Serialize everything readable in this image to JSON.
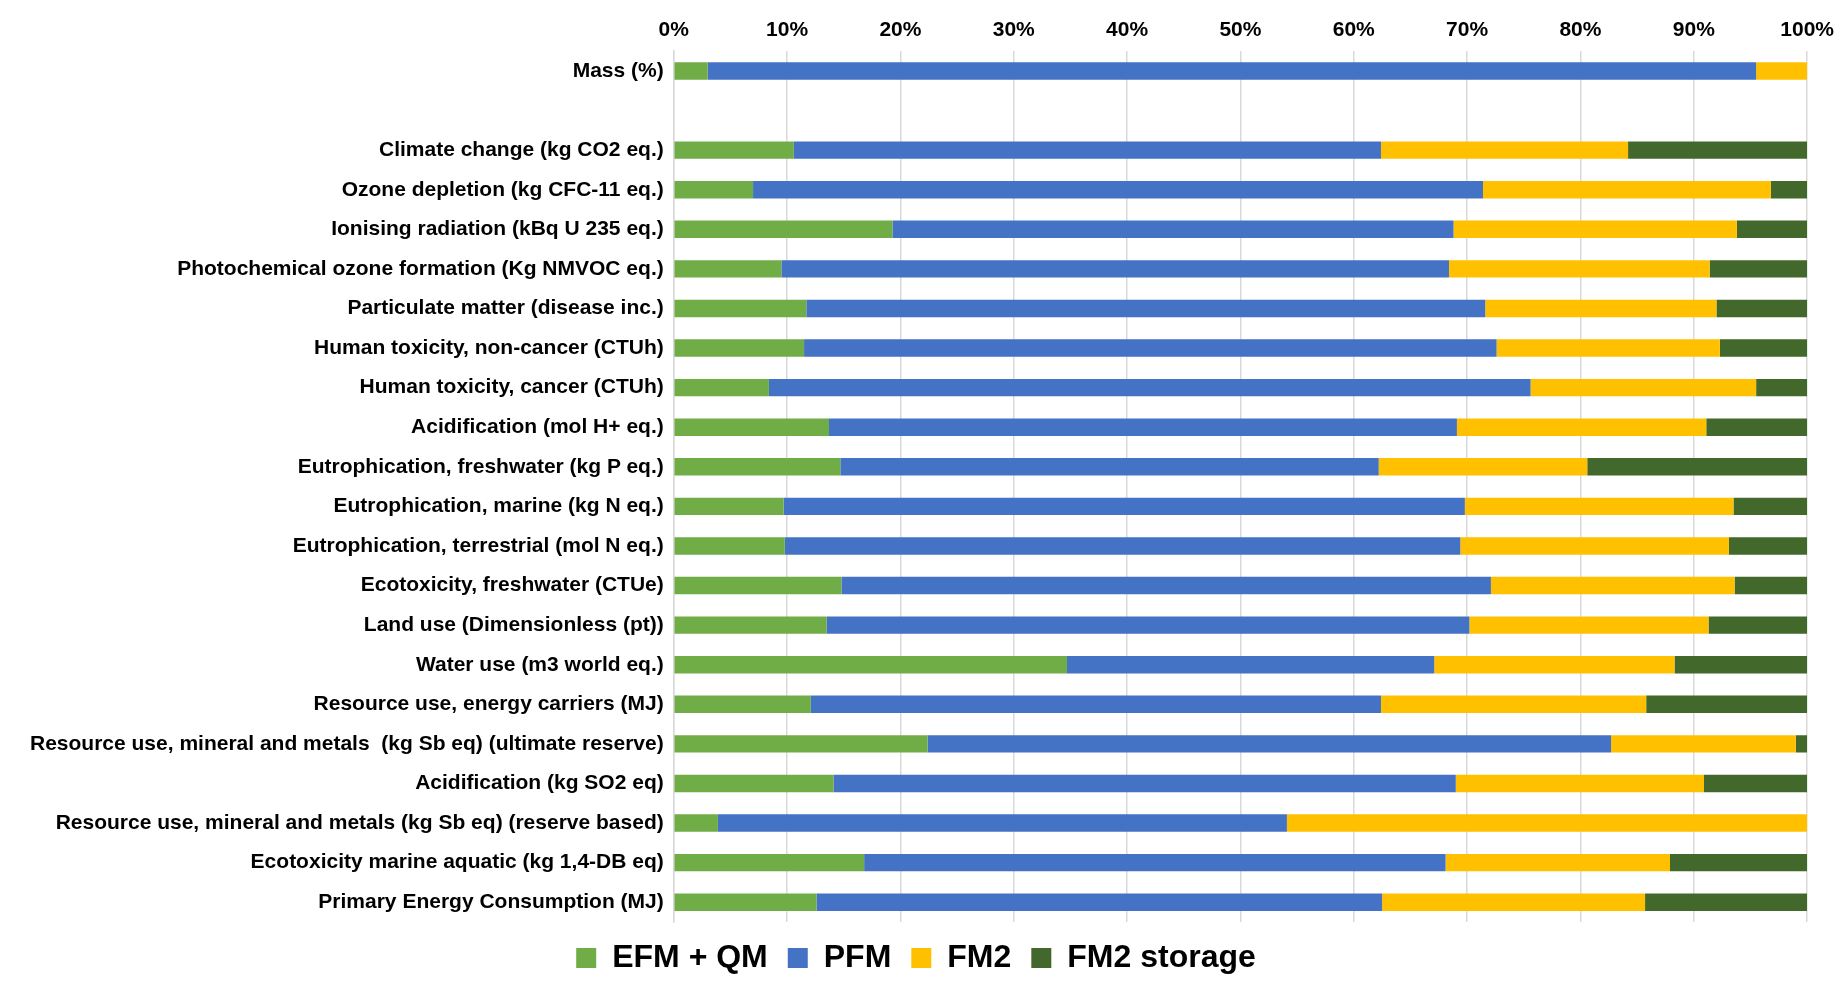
{
  "chart_data": {
    "type": "bar",
    "orientation": "horizontal",
    "stacked": true,
    "grid": "x",
    "legend": "bottom",
    "categories": [
      "Mass (%)",
      null,
      "Climate change (kg CO2 eq.)",
      "Ozone depletion (kg CFC-11 eq.)",
      "Ionising radiation (kBq U 235 eq.)",
      "Photochemical ozone formation (Kg NMVOC eq.)",
      "Particulate matter (disease inc.)",
      "Human toxicity, non-cancer (CTUh)",
      "Human toxicity, cancer (CTUh)",
      "Acidification (mol H+ eq.)",
      "Eutrophication, freshwater (kg P eq.)",
      "Eutrophication, marine (kg N eq.)",
      "Eutrophication, terrestrial (mol N eq.)",
      "Ecotoxicity, freshwater (CTUe)",
      "Land use (Dimensionless (pt))",
      "Water use (m3 world eq.)",
      "Resource use, energy carriers (MJ)",
      "Resource use, mineral and metals  (kg Sb eq) (ultimate reserve)",
      "Acidification (kg SO2 eq)",
      "Resource use, mineral and metals (kg Sb eq) (reserve based)",
      "Ecotoxicity marine aquatic (kg 1,4-DB eq)",
      "Primary Energy Consumption (MJ)"
    ],
    "series": [
      {
        "name": "EFM + QM",
        "color": "#70ad47",
        "values": [
          3,
          null,
          10.6,
          7,
          19.3,
          9.5,
          11.7,
          11.5,
          8.4,
          13.7,
          14.7,
          9.7,
          9.8,
          14.8,
          13.5,
          34.7,
          12.1,
          22.4,
          14.1,
          3.9,
          16.8,
          12.6
        ]
      },
      {
        "name": "PFM",
        "color": "#4472c4",
        "values": [
          92.5,
          null,
          51.8,
          64.4,
          49.5,
          58.9,
          59.9,
          61.1,
          67.2,
          55.4,
          47.5,
          60.1,
          59.6,
          57.3,
          56.7,
          32.4,
          50.3,
          60.3,
          54.9,
          50.2,
          51.3,
          49.9
        ]
      },
      {
        "name": "FM2",
        "color": "#ffc000",
        "values": [
          4.5,
          null,
          21.8,
          25.4,
          25,
          23,
          20.4,
          19.7,
          19.9,
          22,
          18.4,
          23.7,
          23.7,
          21.5,
          21.1,
          21.2,
          23.4,
          16.3,
          21.9,
          45.9,
          19.8,
          23.2
        ]
      },
      {
        "name": "FM2 storage",
        "color": "#43682b",
        "values": [
          0,
          null,
          15.8,
          3.2,
          6.2,
          8.6,
          8,
          7.7,
          4.5,
          8.9,
          19.4,
          6.5,
          6.9,
          6.4,
          8.7,
          11.7,
          14.2,
          1,
          9.1,
          0,
          12.1,
          14.3
        ]
      }
    ],
    "xlim": [
      0,
      100
    ],
    "xticks": [
      {
        "value": 0,
        "label": "0%"
      },
      {
        "value": 10,
        "label": "10%"
      },
      {
        "value": 20,
        "label": "20%"
      },
      {
        "value": 30,
        "label": "30%"
      },
      {
        "value": 40,
        "label": "40%"
      },
      {
        "value": 50,
        "label": "50%"
      },
      {
        "value": 60,
        "label": "60%"
      },
      {
        "value": 70,
        "label": "70%"
      },
      {
        "value": 80,
        "label": "80%"
      },
      {
        "value": 90,
        "label": "90%"
      },
      {
        "value": 100,
        "label": "100%"
      }
    ]
  }
}
